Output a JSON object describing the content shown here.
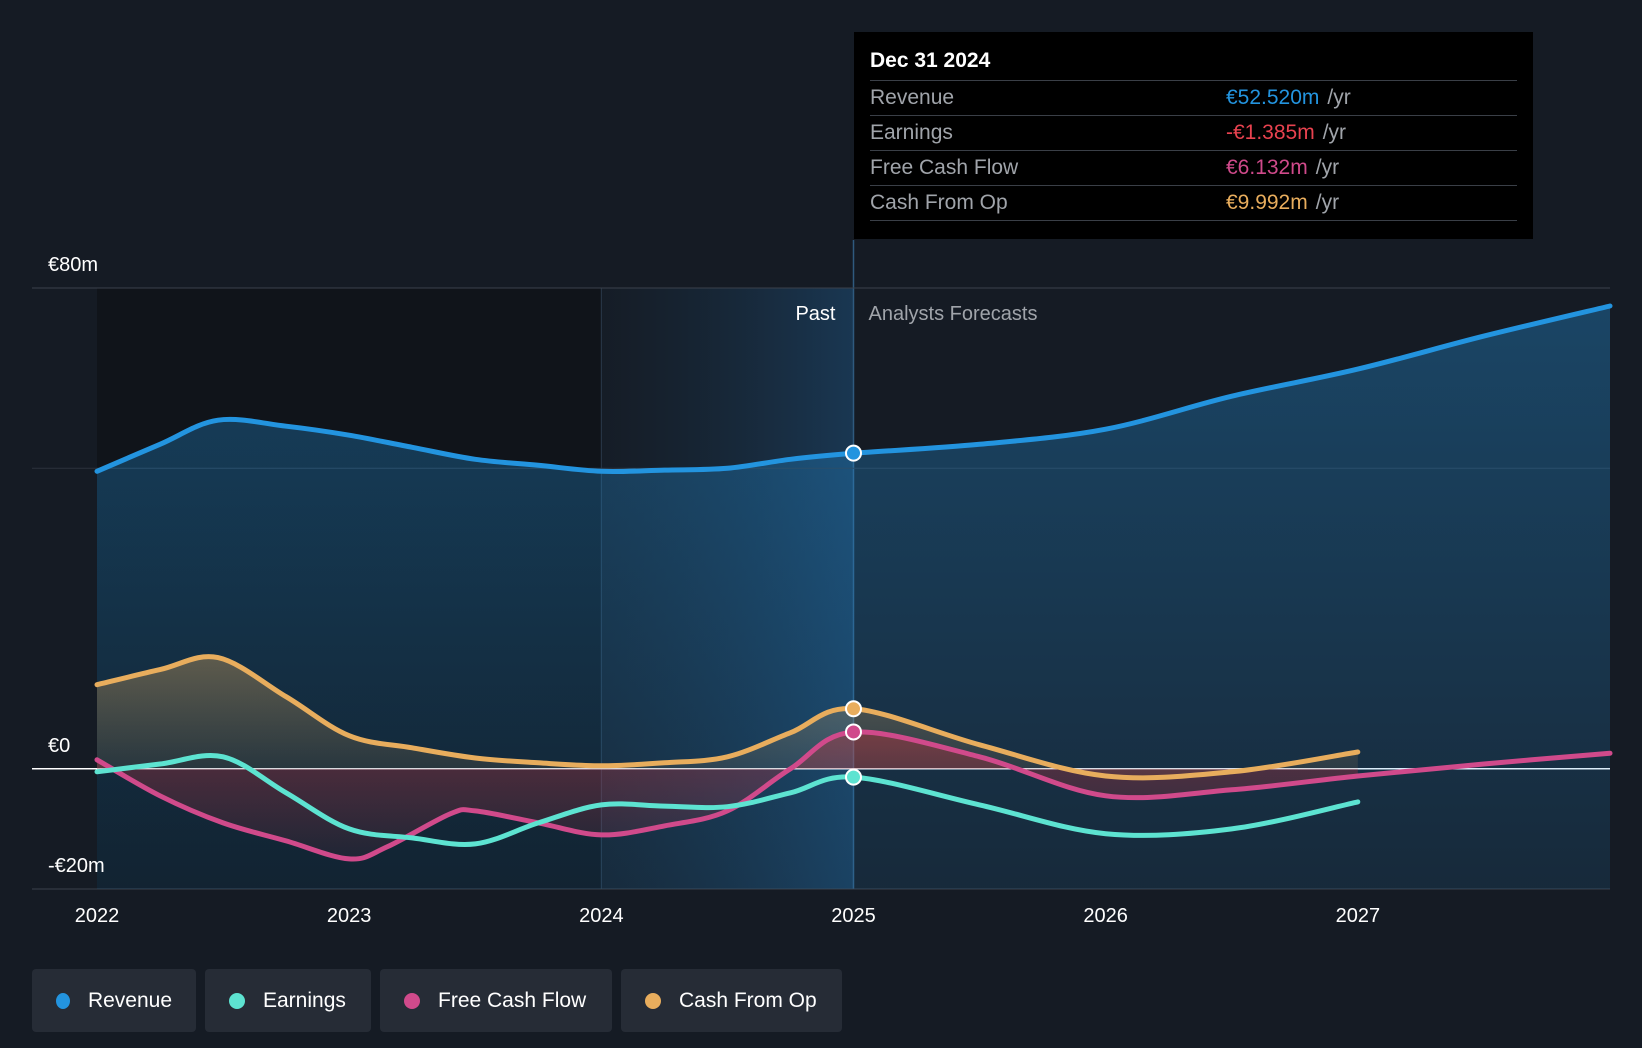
{
  "chart_data": {
    "type": "line",
    "x_range": [
      2022,
      2028
    ],
    "ylim": [
      -20,
      80
    ],
    "y_ticks": [
      {
        "value": 80,
        "label": "€80m"
      },
      {
        "value": 0,
        "label": "€0"
      },
      {
        "value": -20,
        "label": "-€20m"
      }
    ],
    "x_ticks": [
      {
        "value": 2022,
        "label": "2022"
      },
      {
        "value": 2023,
        "label": "2023"
      },
      {
        "value": 2024,
        "label": "2024"
      },
      {
        "value": 2025,
        "label": "2025"
      },
      {
        "value": 2026,
        "label": "2026"
      },
      {
        "value": 2027,
        "label": "2027"
      }
    ],
    "past_label": "Past",
    "forecast_label": "Analysts Forecasts",
    "divider_x": 2025,
    "past_highlight_start": 2024,
    "series": [
      {
        "name": "Revenue",
        "color": "#2394df",
        "fill": true,
        "points": [
          [
            2022,
            49.5
          ],
          [
            2022.25,
            54
          ],
          [
            2022.48,
            58
          ],
          [
            2022.75,
            57
          ],
          [
            2023,
            55.5
          ],
          [
            2023.25,
            53.5
          ],
          [
            2023.5,
            51.5
          ],
          [
            2023.75,
            50.5
          ],
          [
            2024,
            49.5
          ],
          [
            2024.25,
            49.7
          ],
          [
            2024.5,
            50
          ],
          [
            2024.75,
            51.5
          ],
          [
            2025,
            52.5
          ],
          [
            2025.5,
            54
          ],
          [
            2026,
            56.5
          ],
          [
            2026.5,
            62
          ],
          [
            2027,
            66.5
          ],
          [
            2027.5,
            72
          ],
          [
            2028,
            77
          ]
        ]
      },
      {
        "name": "Cash From Op",
        "color": "#e8ad5d",
        "fill": true,
        "points": [
          [
            2022,
            14
          ],
          [
            2022.25,
            16.5
          ],
          [
            2022.48,
            18.5
          ],
          [
            2022.75,
            12
          ],
          [
            2023,
            5.5
          ],
          [
            2023.25,
            3.5
          ],
          [
            2023.5,
            1.8
          ],
          [
            2023.75,
            1
          ],
          [
            2024,
            0.5
          ],
          [
            2024.25,
            1
          ],
          [
            2024.5,
            2
          ],
          [
            2024.75,
            6
          ],
          [
            2025,
            10
          ],
          [
            2025.5,
            4
          ],
          [
            2026,
            -1.2
          ],
          [
            2026.5,
            -0.5
          ],
          [
            2027,
            2.8
          ]
        ]
      },
      {
        "name": "Free Cash Flow",
        "color": "#d04a8b",
        "fill": false,
        "points": [
          [
            2022,
            1.5
          ],
          [
            2022.25,
            -4.5
          ],
          [
            2022.5,
            -9
          ],
          [
            2022.75,
            -12
          ],
          [
            2023,
            -15
          ],
          [
            2023.15,
            -13
          ],
          [
            2023.4,
            -7.5
          ],
          [
            2023.5,
            -7
          ],
          [
            2023.75,
            -9
          ],
          [
            2024,
            -11
          ],
          [
            2024.25,
            -9.5
          ],
          [
            2024.5,
            -7
          ],
          [
            2024.75,
            0
          ],
          [
            2025,
            6.1
          ],
          [
            2025.5,
            2
          ],
          [
            2026,
            -4.5
          ],
          [
            2026.5,
            -3.5
          ],
          [
            2027,
            -1.2
          ],
          [
            2027.5,
            0.8
          ],
          [
            2028,
            2.6
          ]
        ]
      },
      {
        "name": "Earnings",
        "color": "#5de3d1",
        "fill": false,
        "points": [
          [
            2022,
            -0.5
          ],
          [
            2022.25,
            0.8
          ],
          [
            2022.5,
            2
          ],
          [
            2022.75,
            -4
          ],
          [
            2023,
            -10
          ],
          [
            2023.25,
            -11.5
          ],
          [
            2023.5,
            -12.5
          ],
          [
            2023.75,
            -9
          ],
          [
            2024,
            -6
          ],
          [
            2024.25,
            -6.2
          ],
          [
            2024.5,
            -6.3
          ],
          [
            2024.75,
            -4
          ],
          [
            2025,
            -1.385
          ],
          [
            2025.5,
            -6
          ],
          [
            2026,
            -10.8
          ],
          [
            2026.5,
            -10
          ],
          [
            2027,
            -5.5
          ]
        ]
      }
    ],
    "highlight_points": [
      {
        "series": "Revenue",
        "x": 2025,
        "y": 52.52
      },
      {
        "series": "Cash From Op",
        "x": 2025,
        "y": 9.992
      },
      {
        "series": "Free Cash Flow",
        "x": 2025,
        "y": 6.132
      },
      {
        "series": "Earnings",
        "x": 2025,
        "y": -1.385
      }
    ]
  },
  "tooltip": {
    "date": "Dec 31 2024",
    "unit": "/yr",
    "rows": [
      {
        "label": "Revenue",
        "value": "€52.520m",
        "color": "#2394df"
      },
      {
        "label": "Earnings",
        "value": "-€1.385m",
        "color": "#e8424f"
      },
      {
        "label": "Free Cash Flow",
        "value": "€6.132m",
        "color": "#d04a8b"
      },
      {
        "label": "Cash From Op",
        "value": "€9.992m",
        "color": "#e8ad5d"
      }
    ]
  },
  "legend": [
    {
      "label": "Revenue",
      "color": "#2394df"
    },
    {
      "label": "Earnings",
      "color": "#5de3d1"
    },
    {
      "label": "Free Cash Flow",
      "color": "#d04a8b"
    },
    {
      "label": "Cash From Op",
      "color": "#e8ad5d"
    }
  ]
}
